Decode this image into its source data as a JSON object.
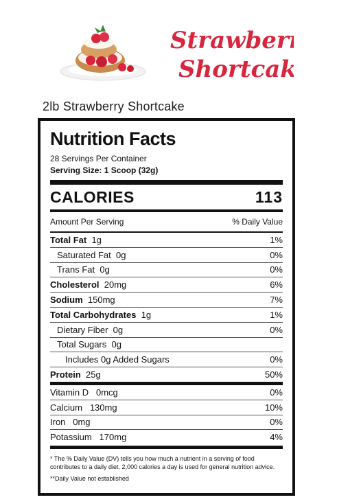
{
  "images": {
    "dessert": "strawberry-shortcake-dessert-photo",
    "logo_line1": "Strawberry",
    "logo_line2": "Shortcake"
  },
  "product_title": "2lb Strawberry Shortcake",
  "label": {
    "title": "Nutrition Facts",
    "servings": "28 Servings Per Container",
    "serving_size": "Serving Size: 1 Scoop (32g)",
    "calories_label": "CALORIES",
    "calories_value": "113",
    "amount_per_serving": "Amount Per Serving",
    "daily_value_header": "% Daily Value",
    "nutrients": [
      {
        "name": "Total Fat",
        "amount": "1g",
        "dv": "1%"
      },
      {
        "name": "Saturated Fat",
        "amount": "0g",
        "dv": "0%"
      },
      {
        "name": "Trans Fat",
        "amount": "0g",
        "dv": "0%"
      },
      {
        "name": "Cholesterol",
        "amount": "20mg",
        "dv": "6%"
      },
      {
        "name": "Sodium",
        "amount": "150mg",
        "dv": "7%"
      },
      {
        "name": "Total Carbohydrates",
        "amount": "1g",
        "dv": "1%"
      },
      {
        "name": "Dietary Fiber",
        "amount": "0g",
        "dv": "0%"
      },
      {
        "name": "Total Sugars",
        "amount": "0g",
        "dv": ""
      },
      {
        "name": "Includes 0g Added Sugars",
        "amount": "",
        "dv": "0%"
      },
      {
        "name": "Protein",
        "amount": "25g",
        "dv": "50%"
      }
    ],
    "vitamins": [
      {
        "name": "Vitamin D",
        "amount": "0mcg",
        "dv": "0%"
      },
      {
        "name": "Calcium",
        "amount": "130mg",
        "dv": "10%"
      },
      {
        "name": "Iron",
        "amount": "0mg",
        "dv": "0%"
      },
      {
        "name": "Potassium",
        "amount": "170mg",
        "dv": "4%"
      }
    ],
    "footnote": "* The % Daily Value (DV) tells you how much a nutrient in a serving of food contributes to a daily diet. 2,000 calories a day is used for general nutrition advice.",
    "footnote2": "**Daily Value not established"
  }
}
